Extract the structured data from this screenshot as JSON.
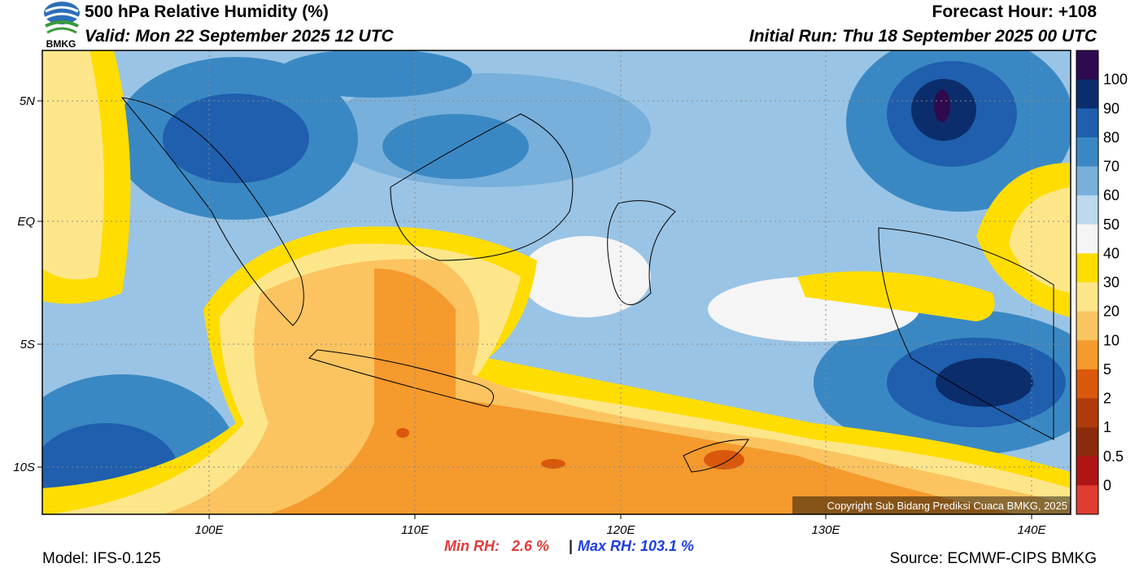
{
  "header": {
    "title": "500 hPa Relative Humidity (%)",
    "valid": "Valid: Mon 22 September 2025 12 UTC",
    "forecast_hour": "Forecast Hour: +108",
    "initial_run": "Initial Run: Thu 18 September 2025 00 UTC",
    "logo_text": "BMKG"
  },
  "map": {
    "lat_labels": [
      "5N",
      "EQ",
      "5S",
      "10S"
    ],
    "lon_labels": [
      "100E",
      "110E",
      "120E",
      "130E",
      "140E"
    ],
    "copyright": "Copyright Sub Bidang Prediksi Cuaca BMKG, 2025"
  },
  "colorbar": {
    "labels": [
      "100",
      "90",
      "80",
      "70",
      "60",
      "50",
      "40",
      "30",
      "20",
      "10",
      "5",
      "2",
      "1",
      "0.5",
      "0"
    ],
    "colors": [
      "#2d0b4e",
      "#0c2d6b",
      "#1f5fad",
      "#3a88c3",
      "#78b0db",
      "#bcd9ee",
      "#f5f5f5",
      "#ffdd00",
      "#fde68a",
      "#fbc460",
      "#f59a2d",
      "#d9580c",
      "#b03b0a",
      "#8a2c0c",
      "#b01515",
      "#e03c30"
    ]
  },
  "footer": {
    "model": "Model: IFS-0.125",
    "min_rh": "Min RH:   2.6 %",
    "separator": "|",
    "max_rh": "Max RH: 103.1 %",
    "source": "Source: ECMWF-CIPS BMKG"
  }
}
